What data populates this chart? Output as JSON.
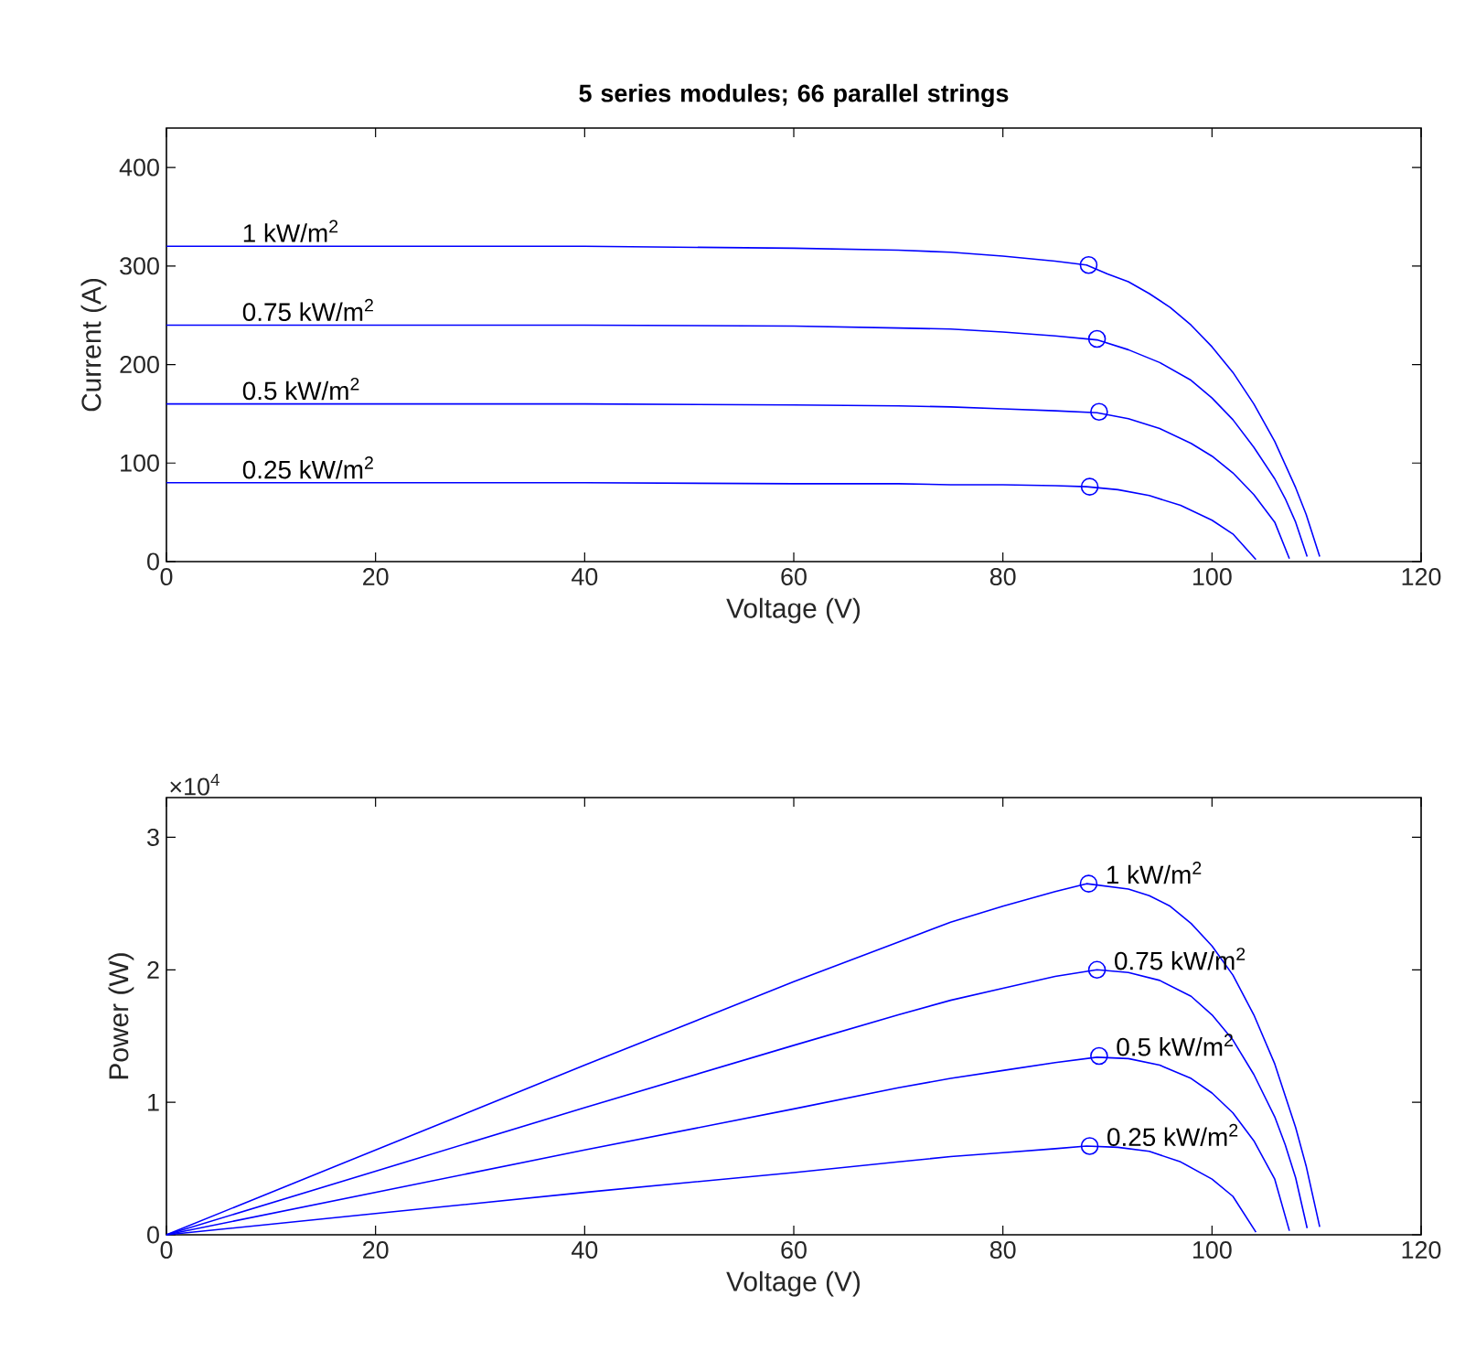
{
  "chart_data": [
    {
      "type": "line",
      "title": "5 series modules; 66 parallel strings",
      "xlabel": "Voltage (V)",
      "ylabel": "Current (A)",
      "xlim": [
        0,
        120
      ],
      "ylim": [
        0,
        440
      ],
      "xticks": [
        0,
        20,
        40,
        60,
        80,
        100,
        120
      ],
      "yticks": [
        0,
        100,
        200,
        300,
        400
      ],
      "grid": false,
      "line_style": "solid",
      "series": [
        {
          "color": "#0000ff",
          "marker": "none",
          "x": [
            0,
            20,
            40,
            60,
            70,
            75,
            80,
            85,
            88,
            90,
            92,
            94,
            96,
            98,
            100,
            102,
            104,
            106,
            108,
            109,
            110.3
          ],
          "values": [
            320,
            320,
            320,
            318,
            316,
            314,
            310,
            305,
            301,
            292,
            284,
            272,
            258,
            240,
            218,
            192,
            160,
            122,
            75,
            48,
            5
          ]
        },
        {
          "color": "#0000ff",
          "marker": "none",
          "x": [
            0,
            20,
            40,
            60,
            70,
            75,
            80,
            85,
            89,
            92,
            95,
            98,
            100,
            102,
            104,
            106,
            107,
            108,
            109.1
          ],
          "values": [
            240,
            240,
            240,
            239,
            237,
            236,
            233,
            229,
            225,
            215,
            202,
            184,
            166,
            144,
            116,
            84,
            64,
            40,
            5
          ]
        },
        {
          "color": "#0000ff",
          "marker": "none",
          "x": [
            0,
            20,
            40,
            60,
            70,
            75,
            80,
            85,
            89,
            92,
            95,
            98,
            100,
            102,
            104,
            106,
            107.4
          ],
          "values": [
            160,
            160,
            160,
            159,
            158,
            157,
            155,
            153,
            151,
            145,
            135,
            120,
            107,
            90,
            68,
            40,
            3
          ]
        },
        {
          "color": "#0000ff",
          "marker": "none",
          "x": [
            0,
            20,
            40,
            60,
            70,
            75,
            80,
            85,
            88,
            91,
            94,
            97,
            100,
            102,
            104.2
          ],
          "values": [
            80,
            80,
            80,
            79,
            79,
            78,
            78,
            77,
            76,
            73,
            67,
            57,
            42,
            28,
            2
          ]
        },
        {
          "type": "scatter",
          "color": "#0000ff",
          "marker": "circle",
          "x": [
            88.2,
            89,
            89.2,
            88.3
          ],
          "values": [
            301,
            226,
            152,
            76
          ]
        }
      ],
      "annotations": [
        "1 kW/m$^{2}$",
        "0.75 kW/m$^{2}$",
        "0.5 kW/m$^{2}$",
        "0.25 kW/m$^{2}$"
      ]
    },
    {
      "type": "line",
      "xlabel": "Voltage (V)",
      "ylabel": "Power (W)",
      "xlim": [
        0,
        120
      ],
      "ylim": [
        0,
        3.3
      ],
      "xticks": [
        0,
        20,
        40,
        60,
        80,
        100,
        120
      ],
      "yticks": [
        0,
        1,
        2,
        3
      ],
      "grid": false,
      "line_style": "solid",
      "series": [
        {
          "color": "#0000ff",
          "marker": "none",
          "x": [
            0,
            20,
            40,
            60,
            70,
            75,
            80,
            85,
            88,
            90,
            92,
            94,
            96,
            98,
            100,
            102,
            104,
            106,
            108,
            109,
            110.3
          ],
          "values": [
            0,
            0.64,
            1.28,
            1.91,
            2.21,
            2.36,
            2.48,
            2.59,
            2.65,
            2.63,
            2.61,
            2.56,
            2.48,
            2.35,
            2.18,
            1.96,
            1.66,
            1.29,
            0.81,
            0.52,
            0.06
          ]
        },
        {
          "color": "#0000ff",
          "marker": "none",
          "x": [
            0,
            20,
            40,
            60,
            70,
            75,
            80,
            85,
            89,
            92,
            95,
            98,
            100,
            102,
            104,
            106,
            107,
            108,
            109.1
          ],
          "values": [
            0,
            0.48,
            0.96,
            1.43,
            1.66,
            1.77,
            1.86,
            1.95,
            2.0,
            1.98,
            1.92,
            1.8,
            1.66,
            1.47,
            1.21,
            0.89,
            0.68,
            0.43,
            0.05
          ]
        },
        {
          "color": "#0000ff",
          "marker": "none",
          "x": [
            0,
            20,
            40,
            60,
            70,
            75,
            80,
            85,
            89,
            92,
            95,
            98,
            100,
            102,
            104,
            106,
            107.4
          ],
          "values": [
            0,
            0.32,
            0.64,
            0.95,
            1.11,
            1.18,
            1.24,
            1.3,
            1.34,
            1.33,
            1.28,
            1.18,
            1.07,
            0.92,
            0.71,
            0.42,
            0.03
          ]
        },
        {
          "color": "#0000ff",
          "marker": "none",
          "x": [
            0,
            20,
            40,
            60,
            70,
            75,
            80,
            85,
            88,
            91,
            94,
            97,
            100,
            102,
            104.2
          ],
          "values": [
            0,
            0.16,
            0.32,
            0.47,
            0.55,
            0.59,
            0.62,
            0.65,
            0.67,
            0.66,
            0.63,
            0.55,
            0.42,
            0.29,
            0.02
          ]
        },
        {
          "type": "scatter",
          "color": "#0000ff",
          "marker": "circle",
          "x": [
            88.2,
            89,
            89.2,
            88.3
          ],
          "values": [
            2.65,
            2.0,
            1.35,
            0.67
          ]
        }
      ],
      "annotations": [
        "1 kW/m$^{2}$",
        "0.75 kW/m$^{2}$",
        "0.5 kW/m$^{2}$",
        "0.25 kW/m$^{2}$",
        "×10$^{4}$"
      ]
    }
  ]
}
